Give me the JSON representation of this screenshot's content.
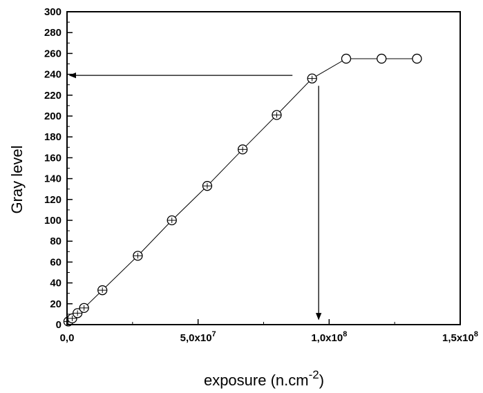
{
  "chart_data": {
    "type": "scatter",
    "title": "",
    "xlabel": "exposure (n.cm",
    "xlabel_superscript": "-2",
    "xlabel_suffix": ")",
    "ylabel": "Gray level",
    "xlim": [
      0,
      150000000
    ],
    "ylim": [
      0,
      300
    ],
    "grid": false,
    "legend": "none",
    "x_ticks": [
      {
        "value": 0,
        "mantissa": "0,0",
        "exp": ""
      },
      {
        "value": 50000000,
        "mantissa": "5,0x10",
        "exp": "7"
      },
      {
        "value": 100000000,
        "mantissa": "1,0x10",
        "exp": "8"
      },
      {
        "value": 150000000,
        "mantissa": "1,5x10",
        "exp": "8"
      }
    ],
    "y_ticks": [
      0,
      20,
      40,
      60,
      80,
      100,
      120,
      140,
      160,
      180,
      200,
      220,
      240,
      260,
      280,
      300
    ],
    "series": [
      {
        "marker": "open-circle",
        "line": true,
        "color": "#000000",
        "points": [
          {
            "x": 500000,
            "y": 3
          },
          {
            "x": 2000000,
            "y": 6
          },
          {
            "x": 4000000,
            "y": 11
          },
          {
            "x": 6500000,
            "y": 16
          },
          {
            "x": 13500000,
            "y": 33
          },
          {
            "x": 27000000,
            "y": 66
          },
          {
            "x": 40000000,
            "y": 100
          },
          {
            "x": 53500000,
            "y": 133
          },
          {
            "x": 67000000,
            "y": 168
          },
          {
            "x": 80000000,
            "y": 201
          },
          {
            "x": 93500000,
            "y": 236
          },
          {
            "x": 106500000,
            "y": 255
          },
          {
            "x": 120000000,
            "y": 255
          },
          {
            "x": 133500000,
            "y": 255
          }
        ]
      }
    ],
    "annotations": [
      {
        "type": "arrow",
        "from": [
          86000000,
          239
        ],
        "to": [
          1000000,
          239
        ]
      },
      {
        "type": "arrow",
        "from": [
          96000000,
          229
        ],
        "to": [
          96000000,
          5
        ]
      }
    ]
  }
}
